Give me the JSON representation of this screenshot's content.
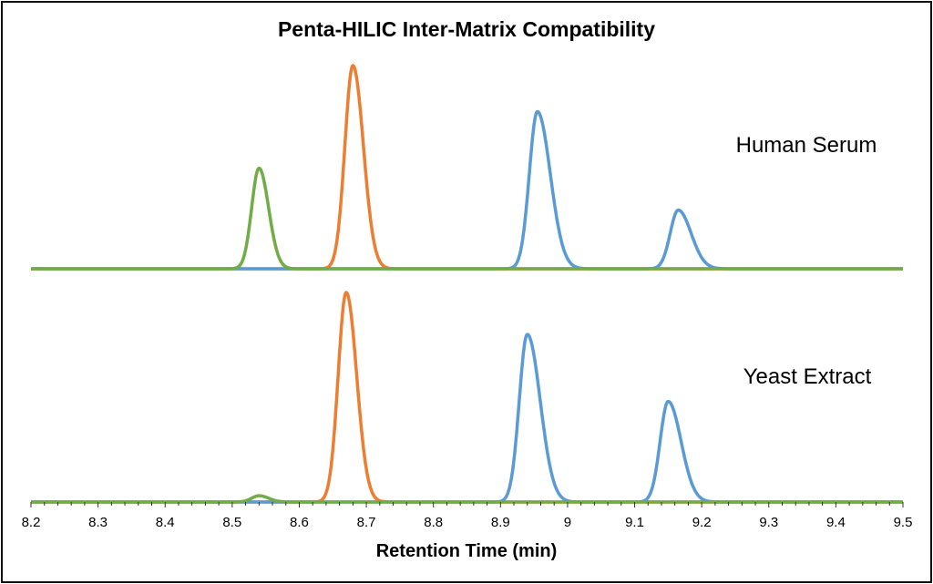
{
  "chart_data": {
    "type": "line",
    "title": "Penta-HILIC Inter-Matrix Compatibility",
    "xlabel": "Retention Time (min)",
    "ylabel": "",
    "xlim": [
      8.2,
      9.5
    ],
    "xticks": [
      "8.2",
      "8.3",
      "8.4",
      "8.5",
      "8.6",
      "8.7",
      "8.8",
      "8.9",
      "9",
      "9.1",
      "9.2",
      "9.3",
      "9.4",
      "9.5"
    ],
    "grid": false,
    "colors": {
      "green": "#70ad47",
      "orange": "#ed7d31",
      "blue": "#5b9bd5"
    },
    "panels": [
      {
        "label": "Human Serum",
        "peaks": [
          {
            "color": "green",
            "rt": 8.54,
            "height": 48
          },
          {
            "color": "orange",
            "rt": 8.68,
            "height": 97
          },
          {
            "color": "blue",
            "rt": 8.955,
            "height": 75
          },
          {
            "color": "blue",
            "rt": 9.165,
            "height": 28
          }
        ]
      },
      {
        "label": "Yeast Extract",
        "peaks": [
          {
            "color": "green",
            "rt": 8.54,
            "height": 3
          },
          {
            "color": "orange",
            "rt": 8.67,
            "height": 100
          },
          {
            "color": "blue",
            "rt": 8.94,
            "height": 80
          },
          {
            "color": "blue",
            "rt": 9.15,
            "height": 48
          }
        ]
      }
    ]
  }
}
